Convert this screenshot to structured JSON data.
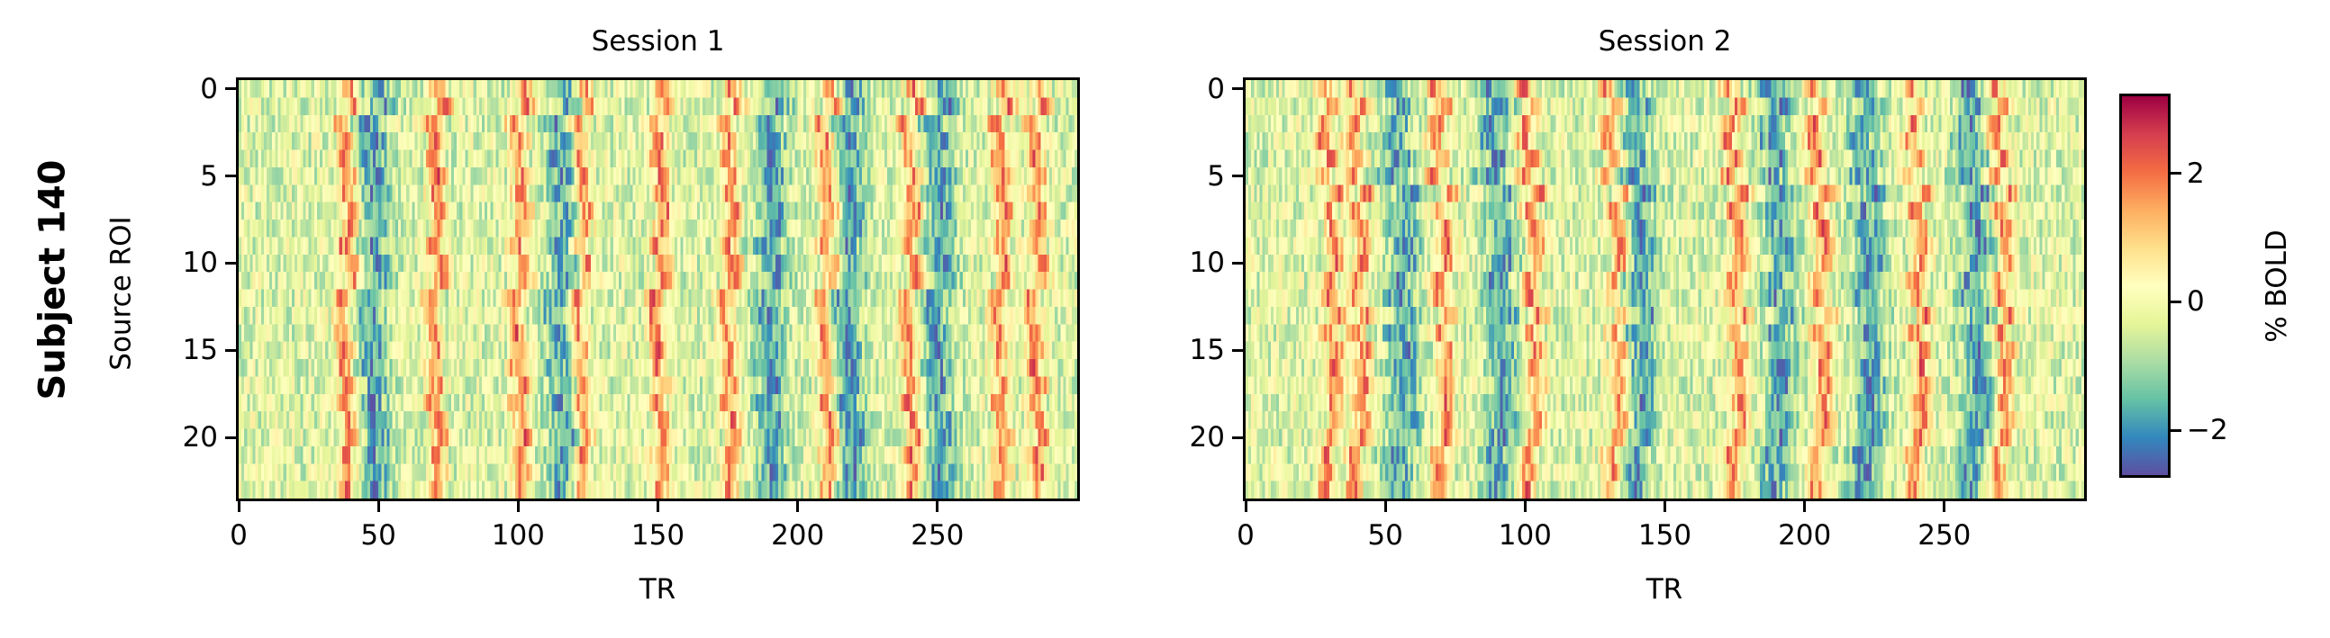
{
  "figure": {
    "row_label": "Subject 140",
    "ylabel": "Source ROI",
    "xlabel": "TR",
    "colorbar_label": "% BOLD"
  },
  "panels": [
    {
      "title": "Session 1"
    },
    {
      "title": "Session 2"
    }
  ],
  "axes": {
    "yticks": [
      "0",
      "5",
      "10",
      "15",
      "20"
    ],
    "xticks": [
      "0",
      "50",
      "100",
      "150",
      "200",
      "250"
    ]
  },
  "colorbar": {
    "ticks": [
      "2",
      "0",
      "−2"
    ],
    "vmin": -2.7,
    "vmax": 3.2,
    "colormap": "Spectral_r",
    "stops": [
      "#5e4fa2",
      "#3288bd",
      "#66c2a5",
      "#abdda4",
      "#e6f598",
      "#ffffbf",
      "#fee08b",
      "#fdae61",
      "#f46d43",
      "#d53e4f",
      "#9e0142"
    ]
  },
  "chart_data": {
    "type": "heatmap",
    "title": "Subject 140",
    "xlabel": "TR",
    "ylabel": "Source ROI",
    "colorbar_label": "% BOLD",
    "n_rows": 24,
    "n_cols": 300,
    "xlim": [
      0,
      300
    ],
    "ylim": [
      23.5,
      -0.5
    ],
    "xticks": [
      0,
      50,
      100,
      150,
      200,
      250
    ],
    "yticks": [
      0,
      5,
      10,
      15,
      20
    ],
    "color_range": [
      -2.7,
      3.2
    ],
    "colorbar_ticks": [
      -2,
      0,
      2
    ],
    "grid": false,
    "legend": "colorbar right",
    "series": [
      {
        "name": "Session 1",
        "positive_bands_TR": [
          38,
          70,
          100,
          122,
          150,
          175,
          210,
          240,
          272,
          285
        ],
        "negative_bands_TR": [
          48,
          115,
          190,
          218,
          250
        ],
        "notes": "Strong vertical stripes of high %BOLD around TR ~38 and ~210; blue/low activity clusters around TR ~110-125 and ~250"
      },
      {
        "name": "Session 2",
        "positive_bands_TR": [
          30,
          40,
          70,
          102,
          132,
          175,
          205,
          240,
          270
        ],
        "negative_bands_TR": [
          55,
          90,
          140,
          190,
          222,
          260
        ],
        "notes": "Regularly spaced warm stripes ~every 30-35 TRs; rows 0-1 and 12 show weaker activation"
      }
    ]
  }
}
